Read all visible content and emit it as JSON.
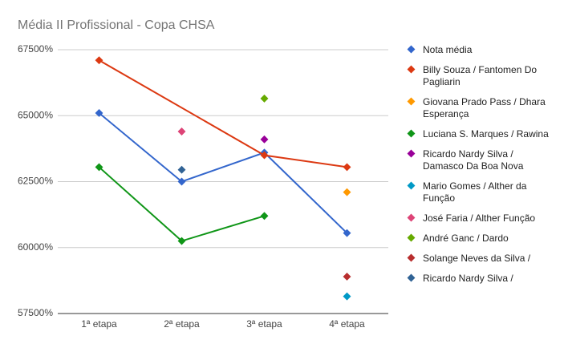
{
  "chart_data": {
    "type": "line",
    "title": "Média II Profissional - Copa CHSA",
    "categories": [
      "1ª etapa",
      "2ª etapa",
      "3ª etapa",
      "4ª etapa"
    ],
    "ylim": [
      57500,
      67500
    ],
    "yticks": [
      {
        "value": 57500,
        "label": "57500%"
      },
      {
        "value": 60000,
        "label": "60000%"
      },
      {
        "value": 62500,
        "label": "62500%"
      },
      {
        "value": 65000,
        "label": "65000%"
      },
      {
        "value": 67500,
        "label": "67500%"
      }
    ],
    "grid": true,
    "interpolate_nulls": true,
    "legend": "right",
    "series": [
      {
        "name": "Nota média",
        "color": "#3366cc",
        "values": [
          65100,
          62500,
          63600,
          60550
        ]
      },
      {
        "name": "Billy Souza / Fantomen Do Pagliarin",
        "color": "#dc3912",
        "values": [
          67100,
          null,
          63500,
          63050
        ]
      },
      {
        "name": "Giovana Prado Pass / Dhara Esperança",
        "color": "#ff9900",
        "values": [
          null,
          null,
          null,
          62100
        ]
      },
      {
        "name": "Luciana S. Marques / Rawina",
        "color": "#109618",
        "values": [
          63050,
          60250,
          61200,
          null
        ]
      },
      {
        "name": "Ricardo Nardy Silva / Damasco Da Boa Nova",
        "color": "#990099",
        "values": [
          null,
          null,
          64100,
          null
        ]
      },
      {
        "name": "Mario Gomes / Alther da Função",
        "color": "#0099c6",
        "values": [
          null,
          null,
          null,
          58150
        ]
      },
      {
        "name": "José Faria / Alther Função",
        "color": "#dd4477",
        "values": [
          null,
          64400,
          null,
          null
        ]
      },
      {
        "name": "André Ganc / Dardo",
        "color": "#66aa00",
        "values": [
          null,
          null,
          65650,
          null
        ]
      },
      {
        "name": "Solange Neves da Silva /",
        "color": "#b82e2e",
        "values": [
          null,
          null,
          null,
          58900
        ]
      },
      {
        "name": "Ricardo Nardy Silva /",
        "color": "#316395",
        "values": [
          null,
          62950,
          null,
          null
        ]
      }
    ]
  }
}
